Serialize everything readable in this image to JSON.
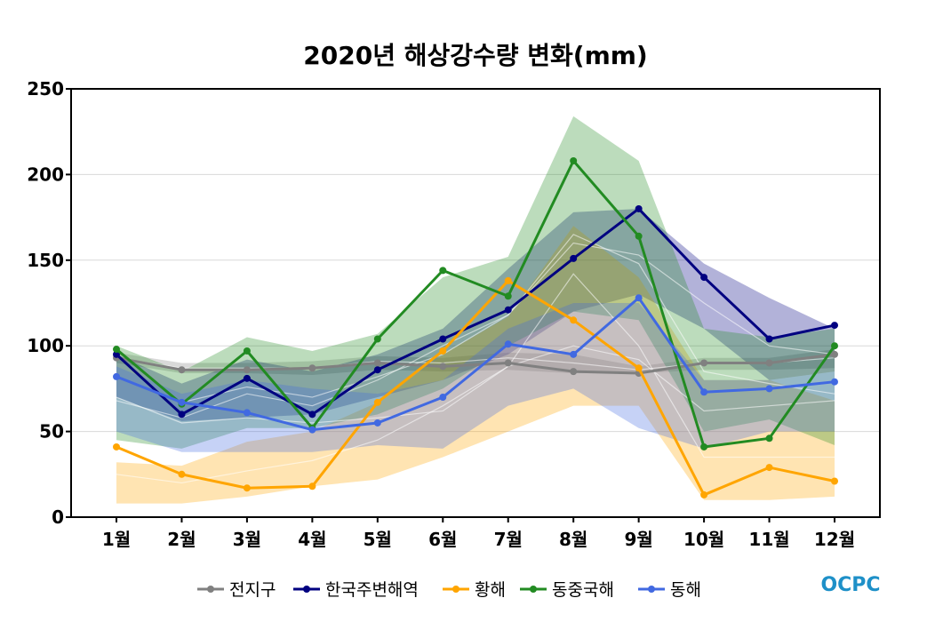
{
  "chart_data": {
    "type": "line",
    "title": "2020년 해상강수량 변화(mm)",
    "categories": [
      "1월",
      "2월",
      "3월",
      "4월",
      "5월",
      "6월",
      "7월",
      "8월",
      "9월",
      "10월",
      "11월",
      "12월"
    ],
    "ylim": [
      0,
      250
    ],
    "yticks": [
      0,
      50,
      100,
      150,
      200,
      250
    ],
    "grid": true,
    "legend_position": "bottom",
    "series": [
      {
        "name": "전지구",
        "color": "#808080",
        "values": [
          93,
          86,
          86,
          87,
          90,
          88,
          90,
          85,
          84,
          90,
          90,
          95
        ],
        "band_low": [
          90,
          84,
          84,
          83,
          86,
          85,
          86,
          84,
          84,
          86,
          86,
          87
        ],
        "band_high": [
          96,
          90,
          90,
          91,
          94,
          93,
          96,
          95,
          88,
          93,
          93,
          98
        ],
        "mean": [
          93,
          87,
          87,
          87,
          91,
          90,
          93,
          90,
          86,
          90,
          90,
          93
        ]
      },
      {
        "name": "한국주변해역",
        "color": "#000080",
        "values": [
          95,
          60,
          81,
          60,
          86,
          104,
          121,
          151,
          180,
          140,
          104,
          112
        ],
        "band_low": [
          70,
          56,
          58,
          60,
          70,
          80,
          95,
          120,
          130,
          110,
          80,
          85
        ],
        "band_high": [
          95,
          78,
          92,
          85,
          95,
          110,
          145,
          178,
          180,
          148,
          128,
          110
        ],
        "mean": [
          82,
          67,
          76,
          70,
          82,
          95,
          118,
          160,
          153,
          125,
          100,
          95
        ]
      },
      {
        "name": "황해",
        "color": "#FFA500",
        "values": [
          41,
          25,
          17,
          18,
          67,
          97,
          138,
          115,
          87,
          13,
          29,
          21
        ],
        "band_low": [
          8,
          8,
          12,
          18,
          22,
          35,
          50,
          65,
          65,
          10,
          10,
          12
        ],
        "band_high": [
          32,
          30,
          44,
          50,
          67,
          95,
          117,
          170,
          140,
          80,
          80,
          68
        ],
        "mean": [
          25,
          20,
          27,
          33,
          45,
          65,
          88,
          142,
          100,
          35,
          35,
          35
        ]
      },
      {
        "name": "동중국해",
        "color": "#228B22",
        "values": [
          98,
          66,
          97,
          52,
          104,
          144,
          129,
          208,
          164,
          41,
          46,
          100
        ],
        "band_low": [
          45,
          40,
          52,
          52,
          60,
          75,
          100,
          120,
          115,
          50,
          57,
          42
        ],
        "band_high": [
          100,
          85,
          105,
          97,
          107,
          140,
          152,
          234,
          208,
          110,
          105,
          110
        ],
        "mean": [
          68,
          58,
          72,
          65,
          80,
          100,
          118,
          165,
          148,
          85,
          78,
          72
        ]
      },
      {
        "name": "동해",
        "color": "#4169E1",
        "values": [
          82,
          67,
          61,
          51,
          55,
          70,
          101,
          95,
          128,
          73,
          75,
          79
        ],
        "band_low": [
          50,
          38,
          38,
          38,
          42,
          40,
          65,
          75,
          52,
          40,
          50,
          50
        ],
        "band_high": [
          88,
          72,
          80,
          75,
          72,
          80,
          110,
          125,
          125,
          80,
          80,
          85
        ],
        "mean": [
          70,
          55,
          58,
          55,
          58,
          62,
          88,
          100,
          92,
          62,
          65,
          68
        ]
      }
    ]
  },
  "logo": {
    "text": "OCPC"
  }
}
